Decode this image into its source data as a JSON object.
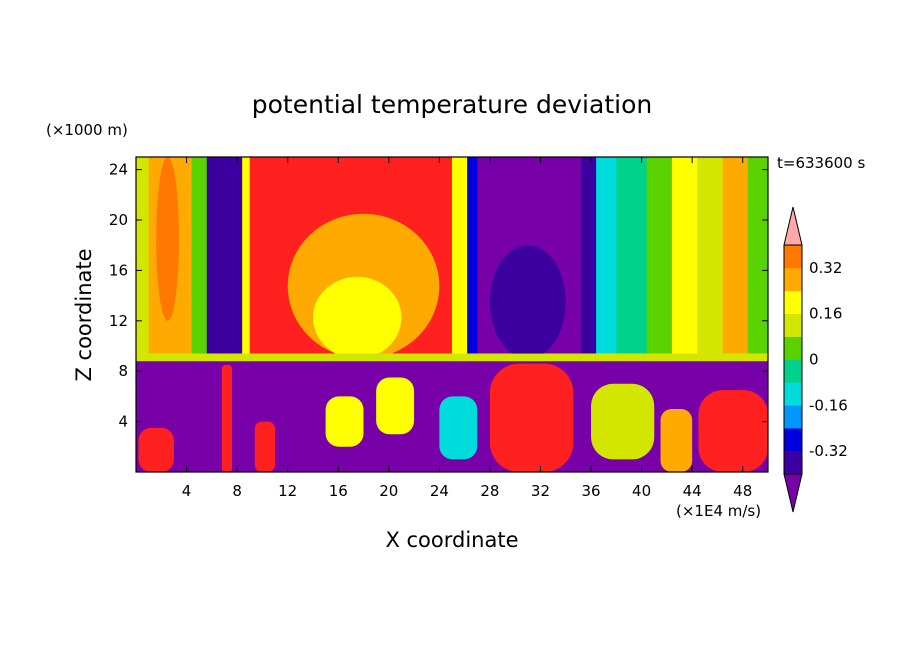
{
  "chart_data": {
    "type": "heatmap",
    "title": "potential temperature deviation",
    "xlabel": "X coordinate",
    "ylabel": "Z coordinate",
    "x_unit": "(×1E4 m/s)",
    "y_unit": "(×1000 m)",
    "time_label": "t=633600 s",
    "xlim": [
      0,
      50
    ],
    "ylim": [
      0,
      25
    ],
    "x_ticks": [
      4,
      8,
      12,
      16,
      20,
      24,
      28,
      32,
      36,
      40,
      44,
      48
    ],
    "y_ticks": [
      4,
      8,
      12,
      16,
      20,
      24
    ],
    "colorbar": {
      "labels": [
        "0.32",
        "0.16",
        "0",
        "-0.16",
        "-0.32"
      ],
      "label_values": [
        0.32,
        0.16,
        0,
        -0.16,
        -0.32
      ],
      "levels": [
        -0.4,
        -0.32,
        -0.24,
        -0.16,
        -0.08,
        0,
        0.08,
        0.16,
        0.24,
        0.32,
        0.4
      ],
      "colors": [
        "#7800a8",
        "#3c00a0",
        "#0000dc",
        "#0096ff",
        "#00dcdc",
        "#00d28c",
        "#5ad200",
        "#d2e600",
        "#ffff00",
        "#ffaa00",
        "#ff7800",
        "#ff2020",
        "#ffaaaa"
      ]
    },
    "upper_layer_columns": [
      {
        "x": [
          0.0,
          1.0
        ],
        "value": 0.1
      },
      {
        "x": [
          1.0,
          3.0
        ],
        "value": 0.3
      },
      {
        "x": [
          3.0,
          4.4
        ],
        "value": 0.24
      },
      {
        "x": [
          4.4,
          5.6
        ],
        "value": 0.02
      },
      {
        "x": [
          5.6,
          8.4
        ],
        "value": -0.4
      },
      {
        "x": [
          8.4,
          9.0
        ],
        "value": 0.2
      },
      {
        "x": [
          9.0,
          25.0
        ],
        "value": 0.44
      },
      {
        "x": [
          25.0,
          26.2
        ],
        "value": 0.18
      },
      {
        "x": [
          26.2,
          27.0
        ],
        "value": -0.28
      },
      {
        "x": [
          27.0,
          35.2
        ],
        "value": -0.44
      },
      {
        "x": [
          35.2,
          36.4
        ],
        "value": -0.34
      },
      {
        "x": [
          36.4,
          38.0
        ],
        "value": -0.12
      },
      {
        "x": [
          38.0,
          40.4
        ],
        "value": -0.04
      },
      {
        "x": [
          40.4,
          42.4
        ],
        "value": 0.06
      },
      {
        "x": [
          42.4,
          44.4
        ],
        "value": 0.18
      },
      {
        "x": [
          44.4,
          46.4
        ],
        "value": 0.1
      },
      {
        "x": [
          46.4,
          48.4
        ],
        "value": 0.28
      },
      {
        "x": [
          48.4,
          50.0
        ],
        "value": 0.06
      }
    ],
    "upper_layer_features": [
      {
        "x": [
          12.0,
          24.0
        ],
        "z": [
          9.0,
          20.5
        ],
        "value": 0.3
      },
      {
        "x": [
          14.0,
          21.0
        ],
        "z": [
          9.0,
          15.5
        ],
        "value": 0.22
      },
      {
        "x": [
          1.6,
          3.4
        ],
        "z": [
          12.0,
          25.0
        ],
        "value": 0.36
      },
      {
        "x": [
          28.0,
          34.0
        ],
        "z": [
          9.0,
          18.0
        ],
        "value": -0.34
      }
    ],
    "inversion_layer": {
      "z": [
        8.8,
        9.4
      ],
      "value": 0.12
    },
    "lower_layer_background": -0.44,
    "lower_layer_features": [
      {
        "x": [
          0.2,
          3.0
        ],
        "z": [
          0.0,
          3.5
        ],
        "value": 0.44
      },
      {
        "x": [
          6.8,
          7.6
        ],
        "z": [
          0.0,
          8.5
        ],
        "value": 0.44
      },
      {
        "x": [
          9.4,
          11.0
        ],
        "z": [
          0.0,
          4.0
        ],
        "value": 0.44
      },
      {
        "x": [
          28.0,
          34.6
        ],
        "z": [
          0.0,
          8.6
        ],
        "value": 0.44
      },
      {
        "x": [
          41.5,
          44.0
        ],
        "z": [
          0.0,
          5.0
        ],
        "value": 0.3
      },
      {
        "x": [
          44.5,
          50.0
        ],
        "z": [
          0.0,
          6.5
        ],
        "value": 0.44
      },
      {
        "x": [
          36.0,
          41.0
        ],
        "z": [
          1.0,
          7.0
        ],
        "value": 0.1
      },
      {
        "x": [
          15.0,
          18.0
        ],
        "z": [
          2.0,
          6.0
        ],
        "value": 0.18
      },
      {
        "x": [
          19.0,
          22.0
        ],
        "z": [
          3.0,
          7.5
        ],
        "value": 0.22
      },
      {
        "x": [
          24.0,
          27.0
        ],
        "z": [
          1.0,
          6.0
        ],
        "value": -0.1
      }
    ]
  }
}
